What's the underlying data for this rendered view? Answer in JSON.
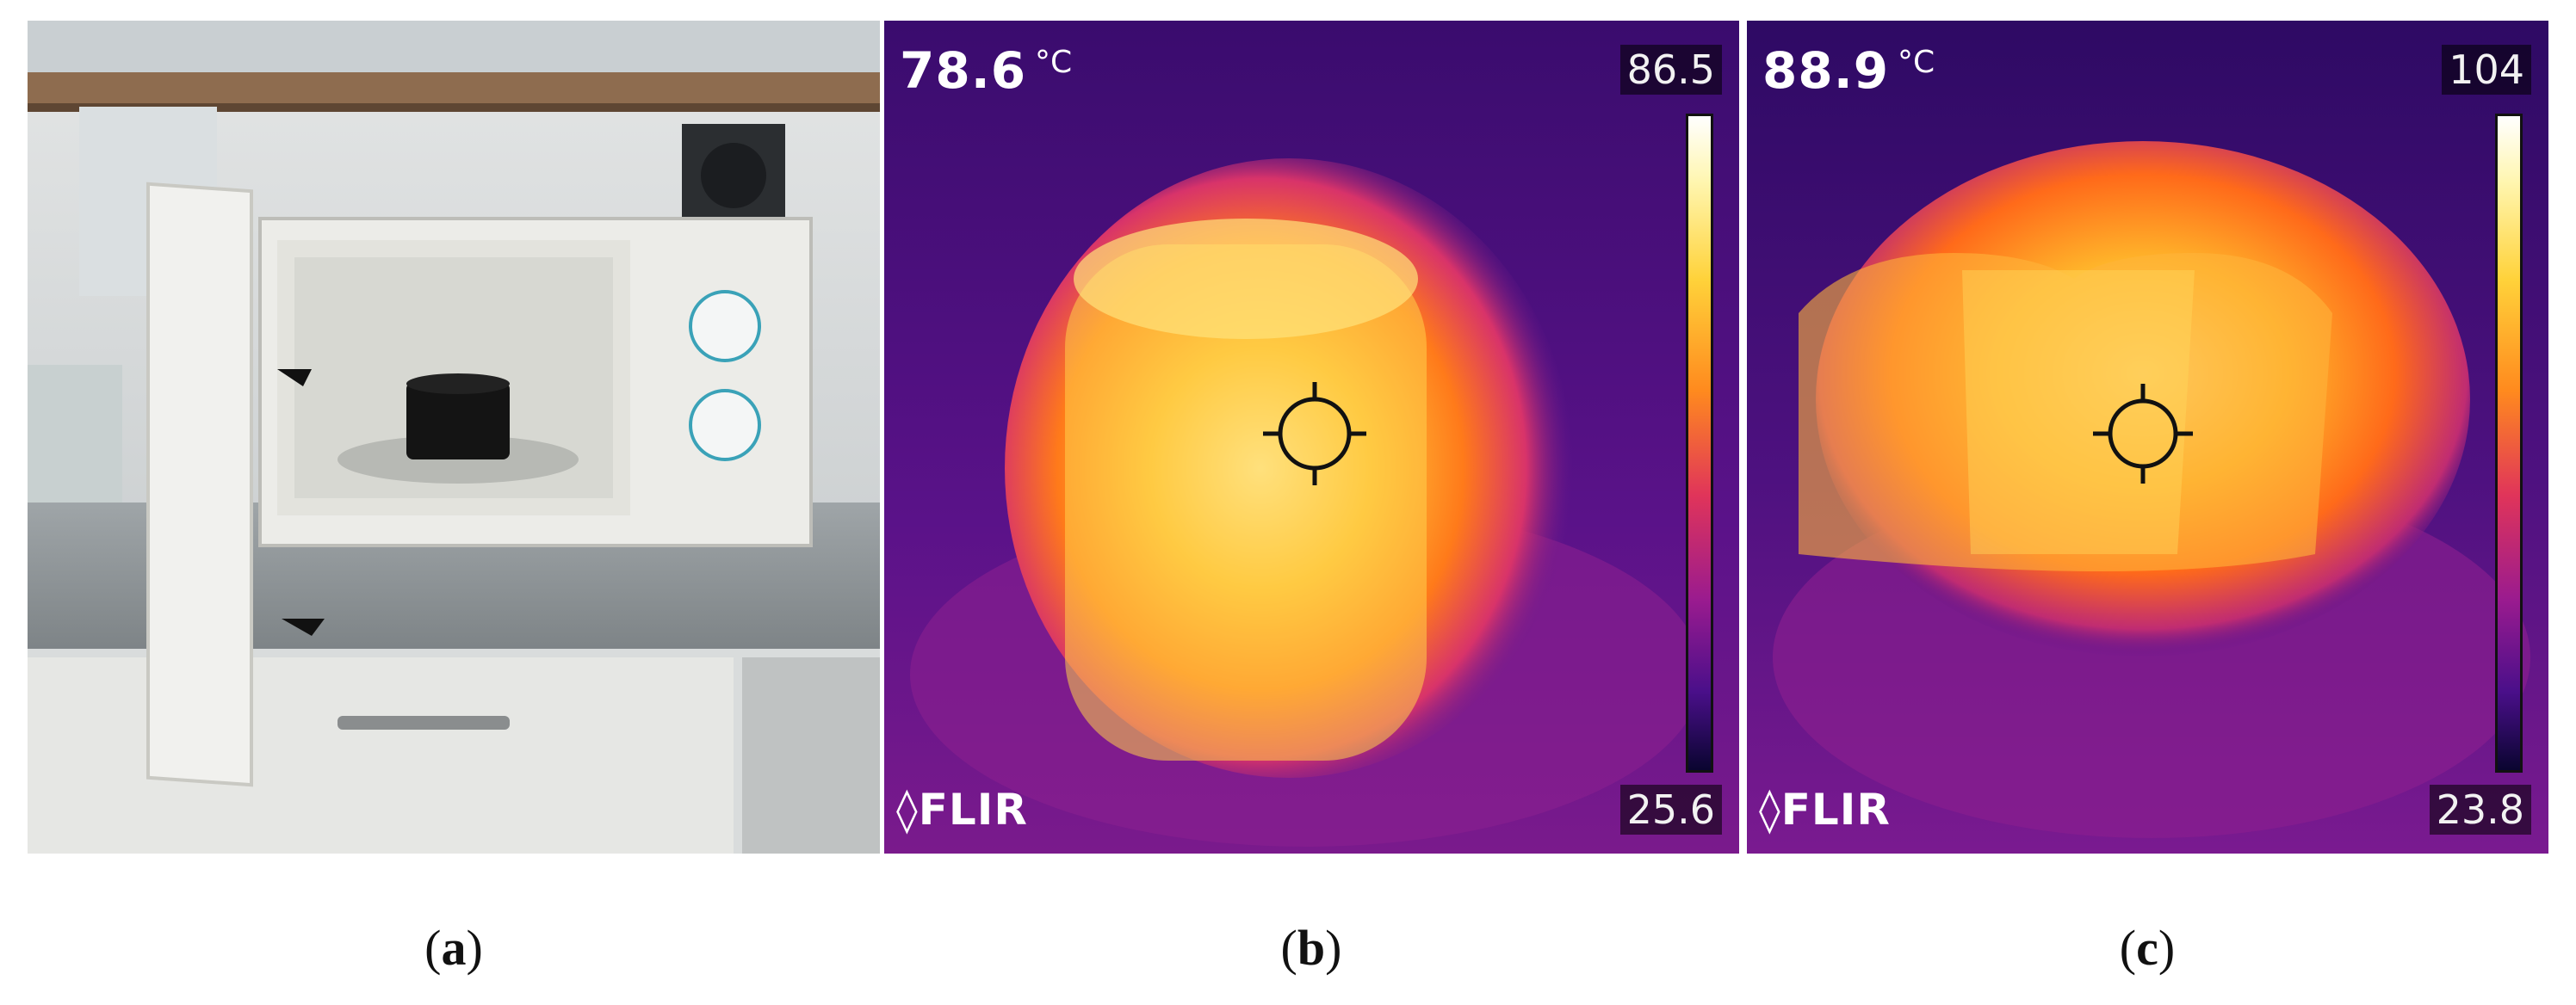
{
  "panels": [
    {
      "id": "a",
      "caption_open": "(",
      "caption_letter": "a",
      "caption_close": ")",
      "type": "photo",
      "description_icon": "microwave-photo"
    },
    {
      "id": "b",
      "caption_open": "(",
      "caption_letter": "b",
      "caption_close": ")",
      "type": "thermal",
      "spot_temperature": "78.6",
      "unit": "°C",
      "scale_max": "86.5",
      "scale_min": "25.6",
      "brand": "FLIR"
    },
    {
      "id": "c",
      "caption_open": "(",
      "caption_letter": "c",
      "caption_close": ")",
      "type": "thermal",
      "spot_temperature": "88.9",
      "unit": "°C",
      "scale_max": "104",
      "scale_min": "23.8",
      "brand": "FLIR"
    }
  ],
  "colors": {
    "hot": "#ffffff",
    "warm": "#ffb000",
    "mid": "#d0306a",
    "cold": "#2a0a5e"
  }
}
